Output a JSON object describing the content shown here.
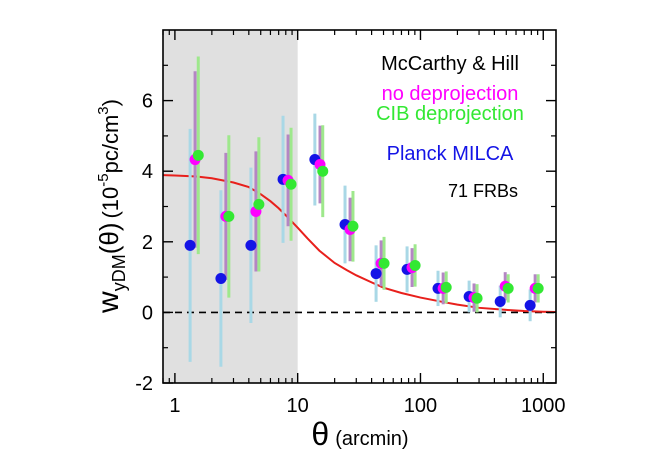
{
  "chart_data": {
    "type": "errorbar",
    "x_label_symbol": "θ",
    "x_label": "(arcmin)",
    "y_label_parts": [
      "w",
      "yDM",
      "(θ)",
      "(10",
      "-5",
      "pc/cm",
      "3",
      ")"
    ],
    "annotations": [
      "McCarthy & Hill",
      "71 FRBs"
    ],
    "xlim": [
      0.8,
      1270
    ],
    "ylim": [
      -2,
      8
    ],
    "log_x": true,
    "xticks": [
      1,
      10,
      100,
      1000
    ],
    "x_minor_ticks": [
      0.8,
      0.9,
      2,
      3,
      4,
      5,
      6,
      7,
      8,
      9,
      20,
      30,
      40,
      50,
      60,
      70,
      80,
      90,
      200,
      300,
      400,
      500,
      600,
      700,
      800,
      900
    ],
    "yticks": [
      -2,
      0,
      2,
      4,
      6
    ],
    "y_minor_ticks": [
      -1,
      1,
      3,
      5,
      7
    ],
    "shaded_xrange": [
      0.8,
      10
    ],
    "shade_color": "#e0e0e0",
    "reference_line": 0,
    "series": [
      {
        "name": "Planck MILCA",
        "color": "#1414e6",
        "error_color": "#a9d8e6",
        "x": [
          1.33,
          2.37,
          4.16,
          7.6,
          13.8,
          24.3,
          43.5,
          77.8,
          139,
          249,
          446,
          782
        ],
        "values": [
          1.9,
          0.96,
          1.9,
          3.77,
          4.33,
          2.49,
          1.1,
          1.22,
          0.68,
          0.45,
          0.31,
          0.2
        ],
        "errors": [
          3.3,
          2.5,
          2.2,
          1.8,
          1.3,
          1.1,
          0.8,
          0.65,
          0.5,
          0.45,
          0.45,
          0.45
        ]
      },
      {
        "name": "no deprojection",
        "color": "#ff00ff",
        "error_color": "#b486c4",
        "x": [
          1.46,
          2.6,
          4.57,
          8.35,
          15.2,
          26.7,
          47.8,
          85.4,
          153,
          273,
          490,
          859
        ],
        "values": [
          4.33,
          2.72,
          2.86,
          3.74,
          4.19,
          2.35,
          1.39,
          1.27,
          0.68,
          0.42,
          0.74,
          0.68
        ],
        "errors": [
          2.5,
          1.8,
          1.7,
          1.3,
          1.1,
          0.9,
          0.65,
          0.55,
          0.45,
          0.4,
          0.4,
          0.4
        ]
      },
      {
        "name": "CIB deprojection",
        "color": "#33e833",
        "error_color": "#9ee88c",
        "x": [
          1.55,
          2.75,
          4.83,
          8.83,
          16,
          28.2,
          50.5,
          90.4,
          162,
          289,
          518,
          909
        ],
        "values": [
          4.45,
          2.72,
          3.06,
          3.63,
          4.0,
          2.44,
          1.39,
          1.33,
          0.71,
          0.4,
          0.68,
          0.68
        ],
        "errors": [
          2.8,
          2.3,
          1.9,
          1.6,
          1.3,
          1.0,
          0.75,
          0.6,
          0.45,
          0.4,
          0.4,
          0.4
        ]
      }
    ],
    "curve": {
      "color": "#e8201c",
      "x": [
        0.8,
        1,
        1.5,
        2,
        3,
        4,
        5,
        6,
        7,
        8,
        10,
        12,
        15,
        20,
        25,
        30,
        40,
        50,
        70,
        100,
        150,
        200,
        300,
        500,
        700,
        1000,
        1270
      ],
      "values": [
        3.89,
        3.88,
        3.85,
        3.8,
        3.68,
        3.55,
        3.35,
        3.15,
        2.95,
        2.75,
        2.4,
        2.1,
        1.75,
        1.4,
        1.2,
        1.05,
        0.85,
        0.7,
        0.55,
        0.42,
        0.3,
        0.22,
        0.13,
        0.07,
        0.04,
        0.02,
        0.01
      ]
    }
  }
}
